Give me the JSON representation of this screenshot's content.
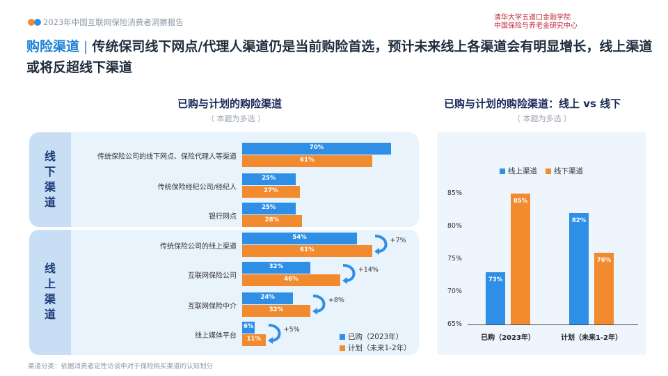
{
  "header": {
    "report_title": "2023年中国互联网保险消费者洞察报告",
    "org_line1": "清华大学五道口金融学院",
    "org_line2": "中国保险与养老金研究中心"
  },
  "headline": {
    "keyword": "购险渠道",
    "separator": "|",
    "text": "传统保司线下网点/代理人渠道仍是当前购险首选，预计未来线上各渠道会有明显增长，线上渠道或将反超线下渠道"
  },
  "footnote": "渠道分类：依据消费者定性访谈中对于保险购买渠道的认知划分",
  "colors": {
    "blue": "#2f8fe6",
    "orange": "#f28a2e"
  },
  "chart_data": [
    {
      "type": "bar",
      "orientation": "horizontal",
      "title": "已购与计划的购险渠道",
      "subtitle": "（ 本题为多选 ）",
      "groups": [
        {
          "name": "线下渠道",
          "categories": [
            "传统保险公司的线下网点、保险代理人等渠道",
            "传统保险经纪公司/经纪人",
            "银行网点"
          ]
        },
        {
          "name": "线上渠道",
          "categories": [
            "传统保险公司的线上渠道",
            "互联网保险公司",
            "互联网保险中介",
            "线上媒体平台"
          ]
        }
      ],
      "categories": [
        "传统保险公司的线下网点、保险代理人等渠道",
        "传统保险经纪公司/经纪人",
        "银行网点",
        "传统保险公司的线上渠道",
        "互联网保险公司",
        "互联网保险中介",
        "线上媒体平台"
      ],
      "series": [
        {
          "name": "已购（2023年）",
          "color": "#2f8fe6",
          "values": [
            70,
            25,
            25,
            54,
            32,
            24,
            6
          ],
          "labels": [
            "70%",
            "25%",
            "25%",
            "54%",
            "32%",
            "24%",
            "6%"
          ]
        },
        {
          "name": "计划（未来1-2年）",
          "color": "#f28a2e",
          "values": [
            61,
            27,
            28,
            61,
            46,
            32,
            11
          ],
          "labels": [
            "61%",
            "27%",
            "28%",
            "61%",
            "46%",
            "32%",
            "11%"
          ]
        }
      ],
      "annotations": [
        {
          "category": "传统保险公司的线上渠道",
          "text": "+7%"
        },
        {
          "category": "互联网保险公司",
          "text": "+14%"
        },
        {
          "category": "互联网保险中介",
          "text": "+8%"
        },
        {
          "category": "线上媒体平台",
          "text": "+5%"
        }
      ],
      "legend": "bottom-right"
    },
    {
      "type": "bar",
      "title": "已购与计划的购险渠道：线上 vs 线下",
      "subtitle": "（ 本题为多选 ）",
      "categories": [
        "已购（2023年）",
        "计划（未来1-2年）"
      ],
      "series": [
        {
          "name": "线上渠道",
          "color": "#2f8fe6",
          "values": [
            73,
            82
          ],
          "labels": [
            "73%",
            "82%"
          ]
        },
        {
          "name": "线下渠道",
          "color": "#f28a2e",
          "values": [
            85,
            76
          ],
          "labels": [
            "85%",
            "76%"
          ]
        }
      ],
      "yticks": [
        "65%",
        "70%",
        "75%",
        "80%",
        "85%"
      ],
      "ylim": [
        65,
        87
      ],
      "legend": "top"
    }
  ]
}
